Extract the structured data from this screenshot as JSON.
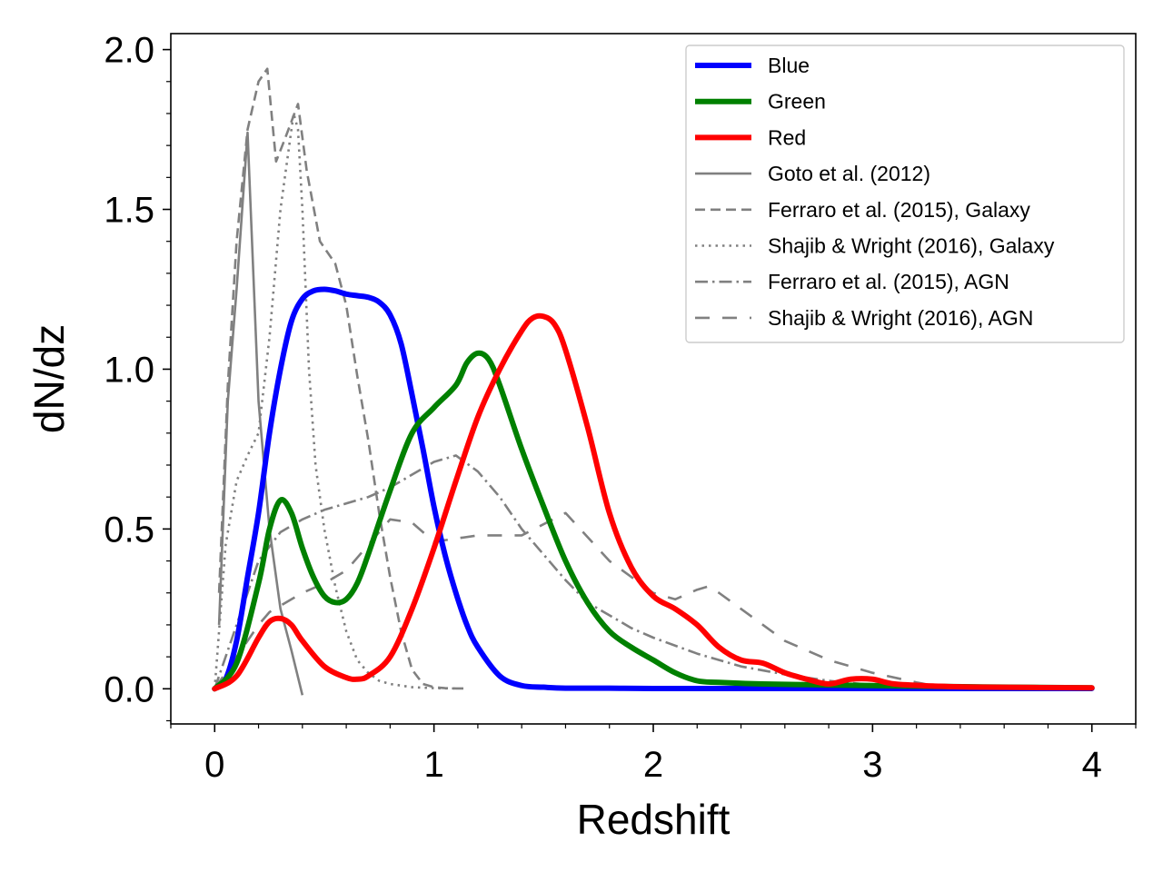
{
  "chart_data": {
    "type": "line",
    "title": "",
    "xlabel": "Redshift",
    "ylabel": "dN/dz",
    "xlim": [
      -0.2,
      4.2
    ],
    "ylim": [
      -0.11,
      2.05
    ],
    "xticks": [
      0,
      1,
      2,
      3,
      4
    ],
    "xtick_labels": [
      "0",
      "1",
      "2",
      "3",
      "4"
    ],
    "xminor_step": 0.2,
    "yticks": [
      0.0,
      0.5,
      1.0,
      1.5,
      2.0
    ],
    "ytick_labels": [
      "0.0",
      "0.5",
      "1.0",
      "1.5",
      "2.0"
    ],
    "yminor_step": 0.1,
    "grid": false,
    "legend_position": "top-right",
    "series": [
      {
        "name": "Blue",
        "color": "#0000ff",
        "style": "solid",
        "width": "thick",
        "x": [
          0,
          0.05,
          0.1,
          0.15,
          0.2,
          0.25,
          0.3,
          0.35,
          0.4,
          0.45,
          0.5,
          0.55,
          0.6,
          0.65,
          0.7,
          0.75,
          0.8,
          0.85,
          0.9,
          0.95,
          1.0,
          1.05,
          1.1,
          1.15,
          1.2,
          1.3,
          1.4,
          1.5,
          1.6,
          1.8,
          2.0,
          2.5,
          3.0,
          3.5,
          4.0
        ],
        "y": [
          0,
          0.03,
          0.15,
          0.35,
          0.55,
          0.8,
          1.0,
          1.15,
          1.22,
          1.245,
          1.25,
          1.245,
          1.235,
          1.23,
          1.225,
          1.21,
          1.17,
          1.08,
          0.92,
          0.75,
          0.57,
          0.42,
          0.3,
          0.2,
          0.13,
          0.04,
          0.01,
          0.005,
          0.002,
          0.002,
          0.001,
          0.001,
          0.001,
          0.001,
          0.001
        ]
      },
      {
        "name": "Green",
        "color": "#008000",
        "style": "solid",
        "width": "thick",
        "x": [
          0,
          0.1,
          0.2,
          0.25,
          0.3,
          0.35,
          0.4,
          0.45,
          0.5,
          0.55,
          0.6,
          0.65,
          0.7,
          0.8,
          0.9,
          1.0,
          1.1,
          1.15,
          1.2,
          1.25,
          1.3,
          1.4,
          1.5,
          1.6,
          1.7,
          1.8,
          1.9,
          2.0,
          2.1,
          2.2,
          2.3,
          2.5,
          2.8,
          3.0,
          3.5,
          4.0
        ],
        "y": [
          0,
          0.08,
          0.33,
          0.5,
          0.59,
          0.55,
          0.44,
          0.35,
          0.29,
          0.27,
          0.28,
          0.33,
          0.42,
          0.62,
          0.8,
          0.88,
          0.95,
          1.02,
          1.05,
          1.03,
          0.95,
          0.75,
          0.57,
          0.4,
          0.27,
          0.18,
          0.13,
          0.09,
          0.05,
          0.025,
          0.02,
          0.015,
          0.012,
          0.01,
          0.006,
          0.003
        ]
      },
      {
        "name": "Red",
        "color": "#ff0000",
        "style": "solid",
        "width": "thick",
        "x": [
          0,
          0.1,
          0.2,
          0.25,
          0.3,
          0.35,
          0.4,
          0.5,
          0.6,
          0.65,
          0.7,
          0.8,
          0.9,
          1.0,
          1.1,
          1.2,
          1.3,
          1.4,
          1.45,
          1.5,
          1.55,
          1.6,
          1.7,
          1.8,
          1.9,
          2.0,
          2.1,
          2.2,
          2.3,
          2.4,
          2.5,
          2.6,
          2.7,
          2.8,
          2.9,
          3.0,
          3.1,
          3.3,
          3.5,
          4.0
        ],
        "y": [
          0,
          0.04,
          0.16,
          0.21,
          0.22,
          0.2,
          0.15,
          0.07,
          0.035,
          0.03,
          0.04,
          0.1,
          0.25,
          0.44,
          0.65,
          0.85,
          1.0,
          1.12,
          1.16,
          1.165,
          1.14,
          1.06,
          0.82,
          0.55,
          0.38,
          0.29,
          0.25,
          0.2,
          0.13,
          0.09,
          0.08,
          0.05,
          0.03,
          0.015,
          0.03,
          0.03,
          0.015,
          0.008,
          0.005,
          0.003
        ]
      },
      {
        "name": "Goto et al. (2012)",
        "color": "#808080",
        "style": "solid",
        "width": "thin",
        "x": [
          0.02,
          0.06,
          0.1,
          0.15,
          0.2,
          0.25,
          0.3,
          0.35,
          0.4
        ],
        "y": [
          0.2,
          0.9,
          1.25,
          1.74,
          0.9,
          0.5,
          0.25,
          0.12,
          -0.02
        ]
      },
      {
        "name": "Ferraro et al. (2015), Galaxy",
        "color": "#808080",
        "style": "dashed",
        "width": "thin",
        "x": [
          0.02,
          0.06,
          0.1,
          0.15,
          0.2,
          0.24,
          0.28,
          0.32,
          0.38,
          0.42,
          0.48,
          0.55,
          0.6,
          0.65,
          0.7,
          0.75,
          0.8,
          0.85,
          0.9,
          0.95,
          1.0,
          1.05,
          1.1,
          1.15
        ],
        "y": [
          0.3,
          0.95,
          1.4,
          1.75,
          1.9,
          1.94,
          1.65,
          1.72,
          1.83,
          1.62,
          1.4,
          1.33,
          1.2,
          0.98,
          0.78,
          0.55,
          0.35,
          0.18,
          0.06,
          0.015,
          0.005,
          0.002,
          0.001,
          0.001
        ]
      },
      {
        "name": "Shajib & Wright (2016), Galaxy",
        "color": "#808080",
        "style": "dotted",
        "width": "thin",
        "x": [
          0,
          0.05,
          0.1,
          0.15,
          0.2,
          0.25,
          0.3,
          0.33,
          0.36,
          0.38,
          0.4,
          0.43,
          0.46,
          0.5,
          0.55,
          0.6,
          0.65,
          0.7,
          0.75,
          0.8,
          0.9,
          1.0,
          1.1
        ],
        "y": [
          0,
          0.45,
          0.65,
          0.73,
          0.8,
          1.1,
          1.5,
          1.65,
          1.8,
          1.75,
          1.5,
          1.0,
          0.7,
          0.5,
          0.32,
          0.18,
          0.09,
          0.05,
          0.025,
          0.015,
          0.005,
          0.002,
          0.001
        ]
      },
      {
        "name": "Ferraro et al. (2015), AGN",
        "color": "#808080",
        "style": "dashdot",
        "width": "thin",
        "x": [
          0,
          0.1,
          0.2,
          0.3,
          0.4,
          0.5,
          0.6,
          0.7,
          0.8,
          0.9,
          1.0,
          1.1,
          1.2,
          1.3,
          1.4,
          1.5,
          1.6,
          1.7,
          1.8,
          1.9,
          2.0,
          2.2,
          2.4,
          2.6,
          2.8,
          3.0,
          3.2,
          3.35
        ],
        "y": [
          0,
          0.2,
          0.4,
          0.49,
          0.53,
          0.56,
          0.58,
          0.6,
          0.63,
          0.67,
          0.71,
          0.73,
          0.68,
          0.6,
          0.5,
          0.42,
          0.34,
          0.27,
          0.23,
          0.19,
          0.16,
          0.11,
          0.07,
          0.045,
          0.025,
          0.012,
          0.006,
          0.003
        ]
      },
      {
        "name": "Shajib & Wright (2016), AGN",
        "color": "#808080",
        "style": "longdash",
        "width": "thin",
        "x": [
          0,
          0.1,
          0.2,
          0.25,
          0.3,
          0.4,
          0.5,
          0.6,
          0.7,
          0.8,
          0.9,
          1.0,
          1.1,
          1.2,
          1.4,
          1.6,
          1.8,
          1.9,
          2.0,
          2.1,
          2.2,
          2.25,
          2.3,
          2.4,
          2.5,
          2.6,
          2.8,
          3.0,
          3.2,
          3.35
        ],
        "y": [
          0,
          0.1,
          0.2,
          0.24,
          0.26,
          0.3,
          0.33,
          0.37,
          0.45,
          0.53,
          0.52,
          0.46,
          0.47,
          0.48,
          0.48,
          0.55,
          0.4,
          0.35,
          0.3,
          0.28,
          0.31,
          0.32,
          0.3,
          0.25,
          0.2,
          0.15,
          0.09,
          0.05,
          0.02,
          0.0
        ]
      }
    ]
  }
}
